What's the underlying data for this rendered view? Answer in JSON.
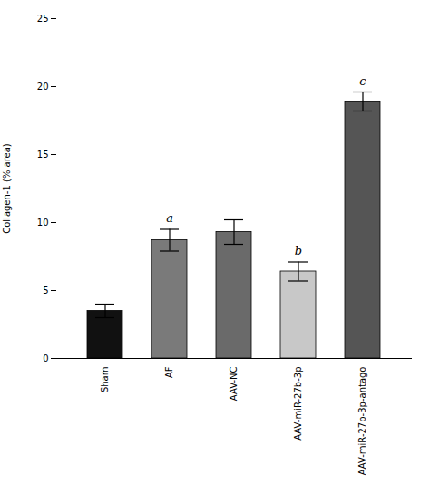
{
  "chart_data": {
    "type": "bar",
    "ylabel": "Collagen-1 (% area)",
    "categories": [
      "Sham",
      "AF",
      "AAV-NC",
      "AAV-miR-27b-3p",
      "AAV-miR-27b-3p-antago"
    ],
    "values": [
      3.5,
      8.7,
      9.3,
      6.4,
      18.9
    ],
    "errors": [
      0.5,
      0.8,
      0.9,
      0.7,
      0.7
    ],
    "colors": [
      "#111111",
      "#7a7a7a",
      "#6a6a6a",
      "#c8c8c8",
      "#555555"
    ],
    "significance_labels": [
      null,
      "a",
      null,
      "b",
      "c"
    ],
    "ylim": [
      0,
      25
    ],
    "yticks": [
      0,
      5,
      10,
      15,
      20,
      25
    ],
    "grid": false
  }
}
